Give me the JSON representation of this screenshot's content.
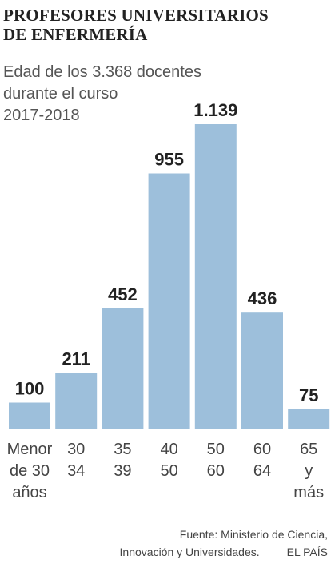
{
  "title": {
    "line1": "PROFESORES UNIVERSITARIOS",
    "line2": "DE ENFERMERÍA"
  },
  "subtitle": {
    "line1": "Edad de los 3.368 docentes",
    "line2": "durante el curso",
    "line3": "2017-2018"
  },
  "source": {
    "line1": "Fuente: Ministerio de Ciencia,",
    "line2": "Innovación y Universidades.",
    "brand": "EL PAÍS"
  },
  "colors": {
    "bar": "#9dbfdb",
    "value_label": "#222222",
    "category_label": "#444444"
  },
  "chart_data": {
    "type": "bar",
    "categories": [
      [
        "Menor",
        "de 30",
        "años"
      ],
      [
        "30",
        "34"
      ],
      [
        "35",
        "39"
      ],
      [
        "40",
        "50"
      ],
      [
        "50",
        "60"
      ],
      [
        "60",
        "64"
      ],
      [
        "65",
        "y",
        "más"
      ]
    ],
    "values": [
      100,
      211,
      452,
      955,
      1139,
      436,
      75
    ],
    "value_labels": [
      "100",
      "211",
      "452",
      "955",
      "1.139",
      "436",
      "75"
    ],
    "ylim": [
      0,
      1139
    ],
    "grid": false,
    "legend": "none"
  }
}
